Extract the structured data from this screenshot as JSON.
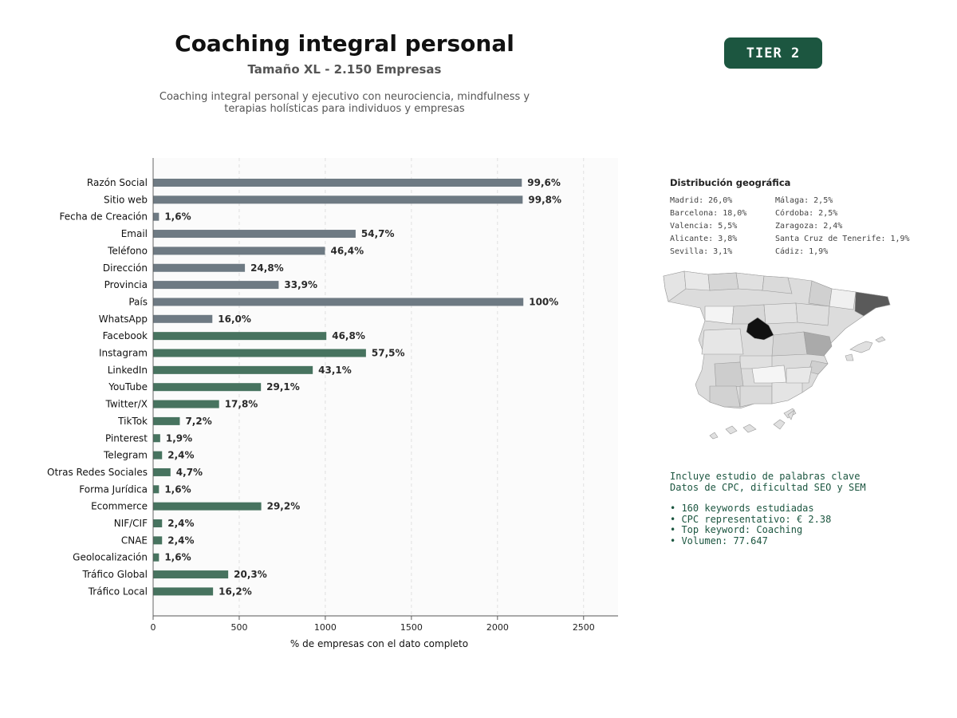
{
  "header": {
    "title": "Coaching integral personal",
    "subtitle": "Tamaño XL - 2.150 Empresas",
    "description_line1": "Coaching integral personal y ejecutivo con neurociencia, mindfulness y",
    "description_line2": "terapias holísticas para individuos y empresas",
    "tier_badge": "TIER 2"
  },
  "chart_data": {
    "type": "bar",
    "orientation": "horizontal",
    "xlabel": "% de empresas con el dato completo",
    "xlim": [
      0,
      2700
    ],
    "xticks": [
      0,
      500,
      1000,
      1500,
      2000,
      2500
    ],
    "grid": "vertical dashed",
    "colors": {
      "basic": "#6e7a83",
      "social": "#47735f"
    },
    "categories": [
      "Razón Social",
      "Sitio web",
      "Fecha de Creación",
      "Email",
      "Teléfono",
      "Dirección",
      "Provincia",
      "País",
      "WhatsApp",
      "Facebook",
      "Instagram",
      "LinkedIn",
      "YouTube",
      "Twitter/X",
      "TikTok",
      "Pinterest",
      "Telegram",
      "Otras Redes Sociales",
      "Forma Jurídica",
      "Ecommerce",
      "NIF/CIF",
      "CNAE",
      "Geolocalización",
      "Tráfico Global",
      "Tráfico Local"
    ],
    "values": [
      2141,
      2146,
      34,
      1176,
      998,
      533,
      729,
      2150,
      344,
      1006,
      1236,
      927,
      626,
      383,
      155,
      41,
      52,
      101,
      34,
      628,
      52,
      52,
      34,
      436,
      348
    ],
    "labels": [
      "99,6%",
      "99,8%",
      "1,6%",
      "54,7%",
      "46,4%",
      "24,8%",
      "33,9%",
      "100%",
      "16,0%",
      "46,8%",
      "57,5%",
      "43,1%",
      "29,1%",
      "17,8%",
      "7,2%",
      "1,9%",
      "2,4%",
      "4,7%",
      "1,6%",
      "29,2%",
      "2,4%",
      "2,4%",
      "1,6%",
      "20,3%",
      "16,2%"
    ],
    "groups": [
      "basic",
      "basic",
      "basic",
      "basic",
      "basic",
      "basic",
      "basic",
      "basic",
      "basic",
      "social",
      "social",
      "social",
      "social",
      "social",
      "social",
      "social",
      "social",
      "social",
      "social",
      "social",
      "social",
      "social",
      "social",
      "social",
      "social"
    ]
  },
  "geo": {
    "title": "Distribución geográfica",
    "col1": [
      "Madrid: 26,0%",
      "Barcelona: 18,0%",
      "Valencia: 5,5%",
      "Alicante: 3,8%",
      "Sevilla: 3,1%"
    ],
    "col2": [
      "Málaga: 2,5%",
      "Córdoba: 2,5%",
      "Zaragoza: 2,4%",
      "Santa Cruz de Tenerife: 1,9%",
      "Cádiz: 1,9%"
    ]
  },
  "keywords": {
    "line1": "Incluye estudio de palabras clave",
    "line2": "Datos de CPC, dificultad SEO y SEM",
    "bullets": [
      "• 160 keywords estudiadas",
      "• CPC representativo: € 2.38",
      "• Top keyword: Coaching",
      "• Volumen: 77.647"
    ]
  }
}
